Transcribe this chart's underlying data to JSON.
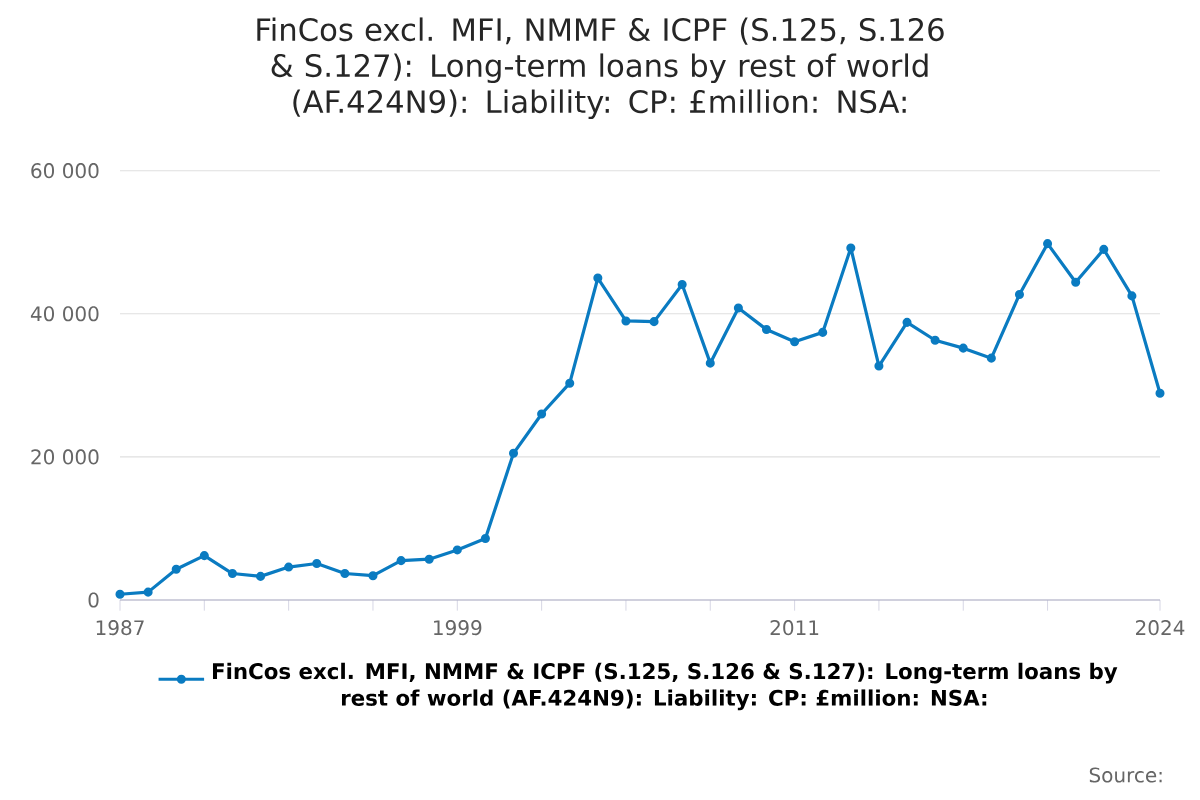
{
  "chart_data": {
    "type": "line",
    "title": "FinCos excl. MFI, NMMF & ICPF (S.125, S.126 & S.127): Long-term loans by rest of world (AF.424N9): Liability: CP: £million: NSA:",
    "x": [
      1987,
      1988,
      1989,
      1990,
      1991,
      1992,
      1993,
      1994,
      1995,
      1996,
      1997,
      1998,
      1999,
      2000,
      2001,
      2002,
      2003,
      2004,
      2005,
      2006,
      2007,
      2008,
      2009,
      2010,
      2011,
      2012,
      2013,
      2014,
      2015,
      2016,
      2017,
      2018,
      2019,
      2020,
      2021,
      2022,
      2023,
      2024
    ],
    "series": [
      {
        "name": "FinCos excl. MFI, NMMF & ICPF (S.125, S.126 & S.127): Long-term loans by rest of world (AF.424N9): Liability: CP: £million: NSA:",
        "color": "#0a7bc1",
        "values": [
          800,
          1100,
          4300,
          6200,
          3700,
          3300,
          4600,
          5100,
          3700,
          3400,
          5500,
          5700,
          7000,
          8600,
          20500,
          26000,
          30300,
          45000,
          39000,
          38900,
          44100,
          33100,
          40800,
          37800,
          36100,
          37400,
          49200,
          32700,
          38800,
          36300,
          35200,
          33800,
          42700,
          49800,
          44400,
          49000,
          42500,
          28900
        ]
      }
    ],
    "xlim": [
      1987,
      2024
    ],
    "xticks": [
      1987,
      {
        "value": 1990,
        "label": null
      },
      {
        "value": 1993,
        "label": null
      },
      {
        "value": 1996,
        "label": null
      },
      1999,
      {
        "value": 2002,
        "label": null
      },
      {
        "value": 2005,
        "label": null
      },
      {
        "value": 2008,
        "label": null
      },
      2011,
      {
        "value": 2014,
        "label": null
      },
      {
        "value": 2017,
        "label": null
      },
      {
        "value": 2020,
        "label": null
      },
      2024
    ],
    "ylim": [
      0,
      60000
    ],
    "yticks": [
      0,
      {
        "value": 20000,
        "label": "20 000"
      },
      {
        "value": 40000,
        "label": "40 000"
      },
      {
        "value": 60000,
        "label": "60 000"
      }
    ],
    "grid": "y",
    "marker": "circle",
    "line_style": "solid",
    "legend": "bottom",
    "annotations": [
      "Source:"
    ]
  }
}
